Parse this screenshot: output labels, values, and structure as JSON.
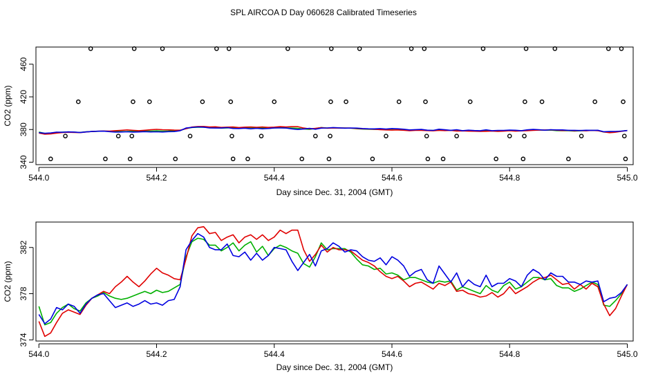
{
  "chart_data": {
    "title": "SPL AIRCOA D  Day 060628  Calibrated Timeseries",
    "colors": {
      "red": "#e00000",
      "green": "#00b000",
      "blue": "#0000e0"
    },
    "panels": [
      {
        "type": "line+scatter",
        "xlabel": "Day since Dec. 31, 2004 (GMT)",
        "ylabel": "CO2 (ppm)",
        "xlim": [
          543.995,
          545.01
        ],
        "ylim": [
          337,
          481
        ],
        "xticks": [
          544.0,
          544.2,
          544.4,
          544.6,
          544.8,
          545.0
        ],
        "xtick_labels": [
          "544.0",
          "544.2",
          "544.4",
          "544.6",
          "544.8",
          "545.0"
        ],
        "yticks": [
          340,
          380,
          420,
          460
        ],
        "ytick_labels": [
          "340",
          "380",
          "420",
          "460"
        ],
        "outliers": [
          {
            "x": 544.02,
            "y": 344
          },
          {
            "x": 544.045,
            "y": 372
          },
          {
            "x": 544.067,
            "y": 414
          },
          {
            "x": 544.088,
            "y": 479
          },
          {
            "x": 544.113,
            "y": 344
          },
          {
            "x": 544.135,
            "y": 372
          },
          {
            "x": 544.155,
            "y": 344
          },
          {
            "x": 544.158,
            "y": 372
          },
          {
            "x": 544.16,
            "y": 414
          },
          {
            "x": 544.162,
            "y": 479
          },
          {
            "x": 544.188,
            "y": 414
          },
          {
            "x": 544.21,
            "y": 479
          },
          {
            "x": 544.232,
            "y": 344
          },
          {
            "x": 544.257,
            "y": 372
          },
          {
            "x": 544.278,
            "y": 414
          },
          {
            "x": 544.302,
            "y": 479
          },
          {
            "x": 544.323,
            "y": 479
          },
          {
            "x": 544.326,
            "y": 414
          },
          {
            "x": 544.328,
            "y": 372
          },
          {
            "x": 544.33,
            "y": 344
          },
          {
            "x": 544.355,
            "y": 344
          },
          {
            "x": 544.378,
            "y": 372
          },
          {
            "x": 544.4,
            "y": 414
          },
          {
            "x": 544.423,
            "y": 479
          },
          {
            "x": 544.447,
            "y": 344
          },
          {
            "x": 544.47,
            "y": 372
          },
          {
            "x": 544.493,
            "y": 344
          },
          {
            "x": 544.495,
            "y": 372
          },
          {
            "x": 544.496,
            "y": 414
          },
          {
            "x": 544.497,
            "y": 479
          },
          {
            "x": 544.522,
            "y": 414
          },
          {
            "x": 544.545,
            "y": 479
          },
          {
            "x": 544.567,
            "y": 344
          },
          {
            "x": 544.59,
            "y": 372
          },
          {
            "x": 544.612,
            "y": 414
          },
          {
            "x": 544.633,
            "y": 479
          },
          {
            "x": 544.655,
            "y": 479
          },
          {
            "x": 544.657,
            "y": 414
          },
          {
            "x": 544.659,
            "y": 372
          },
          {
            "x": 544.661,
            "y": 344
          },
          {
            "x": 544.687,
            "y": 344
          },
          {
            "x": 544.71,
            "y": 372
          },
          {
            "x": 544.733,
            "y": 414
          },
          {
            "x": 544.755,
            "y": 479
          },
          {
            "x": 544.777,
            "y": 344
          },
          {
            "x": 544.8,
            "y": 372
          },
          {
            "x": 544.823,
            "y": 344
          },
          {
            "x": 544.825,
            "y": 372
          },
          {
            "x": 544.826,
            "y": 414
          },
          {
            "x": 544.828,
            "y": 479
          },
          {
            "x": 544.855,
            "y": 414
          },
          {
            "x": 544.877,
            "y": 479
          },
          {
            "x": 544.9,
            "y": 344
          },
          {
            "x": 544.922,
            "y": 372
          },
          {
            "x": 544.945,
            "y": 414
          },
          {
            "x": 544.968,
            "y": 479
          },
          {
            "x": 544.99,
            "y": 479
          },
          {
            "x": 544.993,
            "y": 414
          },
          {
            "x": 544.995,
            "y": 372
          },
          {
            "x": 544.997,
            "y": 344
          }
        ]
      },
      {
        "type": "line",
        "xlabel": "Day since Dec. 31, 2004 (GMT)",
        "ylabel": "CO2 (ppm)",
        "xlim": [
          543.995,
          545.01
        ],
        "ylim": [
          373.9,
          384.2
        ],
        "xticks": [
          544.0,
          544.2,
          544.4,
          544.6,
          544.8,
          545.0
        ],
        "xtick_labels": [
          "544.0",
          "544.2",
          "544.4",
          "544.6",
          "544.8",
          "545.0"
        ],
        "yticks": [
          374,
          378,
          382
        ],
        "ytick_labels": [
          "374",
          "378",
          "382"
        ]
      }
    ],
    "series": [
      {
        "name": "red",
        "color": "#e00000",
        "x": [
          544.0,
          544.01,
          544.02,
          544.03,
          544.04,
          544.05,
          544.06,
          544.07,
          544.08,
          544.09,
          544.1,
          544.11,
          544.12,
          544.13,
          544.14,
          544.15,
          544.16,
          544.17,
          544.18,
          544.19,
          544.2,
          544.21,
          544.22,
          544.23,
          544.24,
          544.25,
          544.26,
          544.27,
          544.28,
          544.29,
          544.3,
          544.31,
          544.32,
          544.33,
          544.34,
          544.35,
          544.36,
          544.37,
          544.38,
          544.39,
          544.4,
          544.41,
          544.42,
          544.43,
          544.44,
          544.45,
          544.46,
          544.47,
          544.48,
          544.49,
          544.5,
          544.51,
          544.52,
          544.53,
          544.54,
          544.55,
          544.56,
          544.57,
          544.58,
          544.59,
          544.6,
          544.61,
          544.62,
          544.63,
          544.64,
          544.65,
          544.66,
          544.67,
          544.68,
          544.69,
          544.7,
          544.71,
          544.72,
          544.73,
          544.74,
          544.75,
          544.76,
          544.77,
          544.78,
          544.79,
          544.8,
          544.81,
          544.82,
          544.83,
          544.84,
          544.85,
          544.86,
          544.87,
          544.88,
          544.89,
          544.9,
          544.91,
          544.92,
          544.93,
          544.94,
          544.95,
          544.96,
          544.97,
          544.98,
          544.99,
          545.0
        ],
        "values": [
          375.6,
          374.3,
          374.6,
          375.5,
          376.3,
          376.6,
          376.4,
          376.2,
          377.0,
          377.6,
          377.9,
          378.2,
          378.0,
          378.6,
          379.0,
          379.5,
          379.0,
          378.6,
          379.1,
          379.7,
          380.2,
          379.8,
          379.6,
          379.3,
          379.2,
          381.0,
          383.0,
          383.7,
          383.8,
          383.2,
          383.3,
          382.6,
          382.9,
          383.1,
          382.4,
          382.9,
          383.1,
          382.7,
          383.1,
          382.6,
          382.9,
          383.5,
          383.2,
          383.5,
          383.5,
          381.8,
          380.8,
          381.4,
          382.2,
          381.6,
          382.0,
          381.8,
          381.8,
          381.7,
          381.3,
          380.9,
          380.7,
          380.4,
          379.9,
          379.5,
          379.3,
          379.5,
          379.1,
          378.6,
          378.9,
          379.0,
          378.7,
          378.4,
          378.9,
          378.7,
          379.0,
          378.2,
          378.3,
          378.0,
          377.9,
          377.7,
          377.8,
          378.1,
          377.7,
          378.0,
          378.6,
          378.0,
          378.3,
          378.6,
          379.0,
          379.3,
          379.4,
          379.6,
          379.2,
          378.8,
          378.9,
          378.4,
          378.8,
          378.4,
          378.9,
          378.6,
          377.1,
          376.1,
          376.7,
          377.8,
          378.8
        ]
      },
      {
        "name": "green",
        "color": "#00b000",
        "x": [
          544.0,
          544.01,
          544.02,
          544.03,
          544.04,
          544.05,
          544.06,
          544.07,
          544.08,
          544.09,
          544.1,
          544.11,
          544.12,
          544.13,
          544.14,
          544.15,
          544.16,
          544.17,
          544.18,
          544.19,
          544.2,
          544.21,
          544.22,
          544.23,
          544.24,
          544.25,
          544.26,
          544.27,
          544.28,
          544.29,
          544.3,
          544.31,
          544.32,
          544.33,
          544.34,
          544.35,
          544.36,
          544.37,
          544.38,
          544.39,
          544.4,
          544.41,
          544.42,
          544.43,
          544.44,
          544.45,
          544.46,
          544.47,
          544.48,
          544.49,
          544.5,
          544.51,
          544.52,
          544.53,
          544.54,
          544.55,
          544.56,
          544.57,
          544.58,
          544.59,
          544.6,
          544.61,
          544.62,
          544.63,
          544.64,
          544.65,
          544.66,
          544.67,
          544.68,
          544.69,
          544.7,
          544.71,
          544.72,
          544.73,
          544.74,
          544.75,
          544.76,
          544.77,
          544.78,
          544.79,
          544.8,
          544.81,
          544.82,
          544.83,
          544.84,
          544.85,
          544.86,
          544.87,
          544.88,
          544.89,
          544.9,
          544.91,
          544.92,
          544.93,
          544.94,
          544.95,
          544.96,
          544.97,
          544.98,
          544.99,
          545.0
        ],
        "values": [
          376.9,
          375.3,
          375.5,
          376.3,
          376.8,
          377.1,
          376.7,
          376.5,
          377.2,
          377.6,
          377.8,
          378.1,
          377.8,
          377.6,
          377.5,
          377.6,
          377.8,
          378.0,
          378.2,
          378.0,
          378.3,
          378.1,
          378.2,
          378.5,
          378.8,
          381.2,
          382.5,
          382.8,
          382.7,
          382.2,
          382.2,
          381.7,
          382.0,
          382.4,
          381.7,
          382.2,
          382.5,
          381.6,
          382.1,
          381.3,
          381.9,
          382.2,
          382.0,
          381.7,
          381.5,
          380.6,
          380.3,
          381.2,
          382.4,
          381.8,
          381.9,
          381.9,
          381.9,
          381.6,
          381.0,
          380.5,
          380.4,
          380.1,
          380.2,
          379.7,
          379.8,
          379.6,
          379.2,
          379.4,
          379.4,
          379.2,
          379.0,
          378.9,
          379.1,
          379.0,
          379.1,
          378.3,
          378.6,
          378.4,
          378.2,
          378.0,
          378.7,
          378.3,
          378.1,
          378.7,
          379.0,
          378.4,
          378.6,
          379.0,
          379.4,
          379.4,
          379.2,
          379.3,
          378.7,
          378.5,
          378.5,
          378.2,
          378.4,
          378.7,
          379.0,
          378.8,
          377.0,
          376.9,
          377.4,
          378.0,
          378.8
        ]
      },
      {
        "name": "blue",
        "color": "#0000e0",
        "x": [
          544.0,
          544.01,
          544.02,
          544.03,
          544.04,
          544.05,
          544.06,
          544.07,
          544.08,
          544.09,
          544.1,
          544.11,
          544.12,
          544.13,
          544.14,
          544.15,
          544.16,
          544.17,
          544.18,
          544.19,
          544.2,
          544.21,
          544.22,
          544.23,
          544.24,
          544.25,
          544.26,
          544.27,
          544.28,
          544.29,
          544.3,
          544.31,
          544.32,
          544.33,
          544.34,
          544.35,
          544.36,
          544.37,
          544.38,
          544.39,
          544.4,
          544.41,
          544.42,
          544.43,
          544.44,
          544.45,
          544.46,
          544.47,
          544.48,
          544.49,
          544.5,
          544.51,
          544.52,
          544.53,
          544.54,
          544.55,
          544.56,
          544.57,
          544.58,
          544.59,
          544.6,
          544.61,
          544.62,
          544.63,
          544.64,
          544.65,
          544.66,
          544.67,
          544.68,
          544.69,
          544.7,
          544.71,
          544.72,
          544.73,
          544.74,
          544.75,
          544.76,
          544.77,
          544.78,
          544.79,
          544.8,
          544.81,
          544.82,
          544.83,
          544.84,
          544.85,
          544.86,
          544.87,
          544.88,
          544.89,
          544.9,
          544.91,
          544.92,
          544.93,
          544.94,
          544.95,
          544.96,
          544.97,
          544.98,
          544.99,
          545.0
        ],
        "values": [
          376.2,
          375.4,
          375.8,
          376.8,
          376.6,
          377.1,
          376.9,
          376.3,
          377.1,
          377.6,
          377.9,
          378.0,
          377.4,
          376.8,
          377.0,
          377.2,
          376.9,
          377.1,
          377.4,
          377.1,
          377.2,
          377.0,
          377.4,
          377.5,
          378.6,
          381.8,
          382.6,
          383.2,
          382.9,
          382.0,
          381.8,
          381.8,
          382.3,
          381.3,
          381.2,
          381.6,
          380.9,
          381.5,
          380.9,
          381.3,
          382.0,
          381.9,
          381.8,
          380.8,
          380.0,
          380.7,
          381.4,
          380.4,
          381.7,
          381.9,
          382.4,
          382.1,
          381.6,
          381.8,
          381.7,
          381.2,
          380.9,
          380.8,
          381.1,
          380.5,
          381.2,
          380.9,
          380.4,
          379.5,
          379.9,
          380.1,
          379.2,
          378.9,
          380.4,
          379.7,
          379.0,
          379.8,
          378.6,
          379.2,
          378.8,
          378.6,
          379.6,
          378.6,
          378.9,
          378.9,
          379.3,
          379.1,
          378.6,
          379.6,
          380.1,
          379.8,
          379.2,
          379.8,
          379.5,
          379.5,
          379.0,
          379.0,
          378.8,
          379.1,
          379.0,
          379.1,
          377.3,
          377.6,
          377.7,
          378.1,
          378.8
        ]
      }
    ]
  }
}
